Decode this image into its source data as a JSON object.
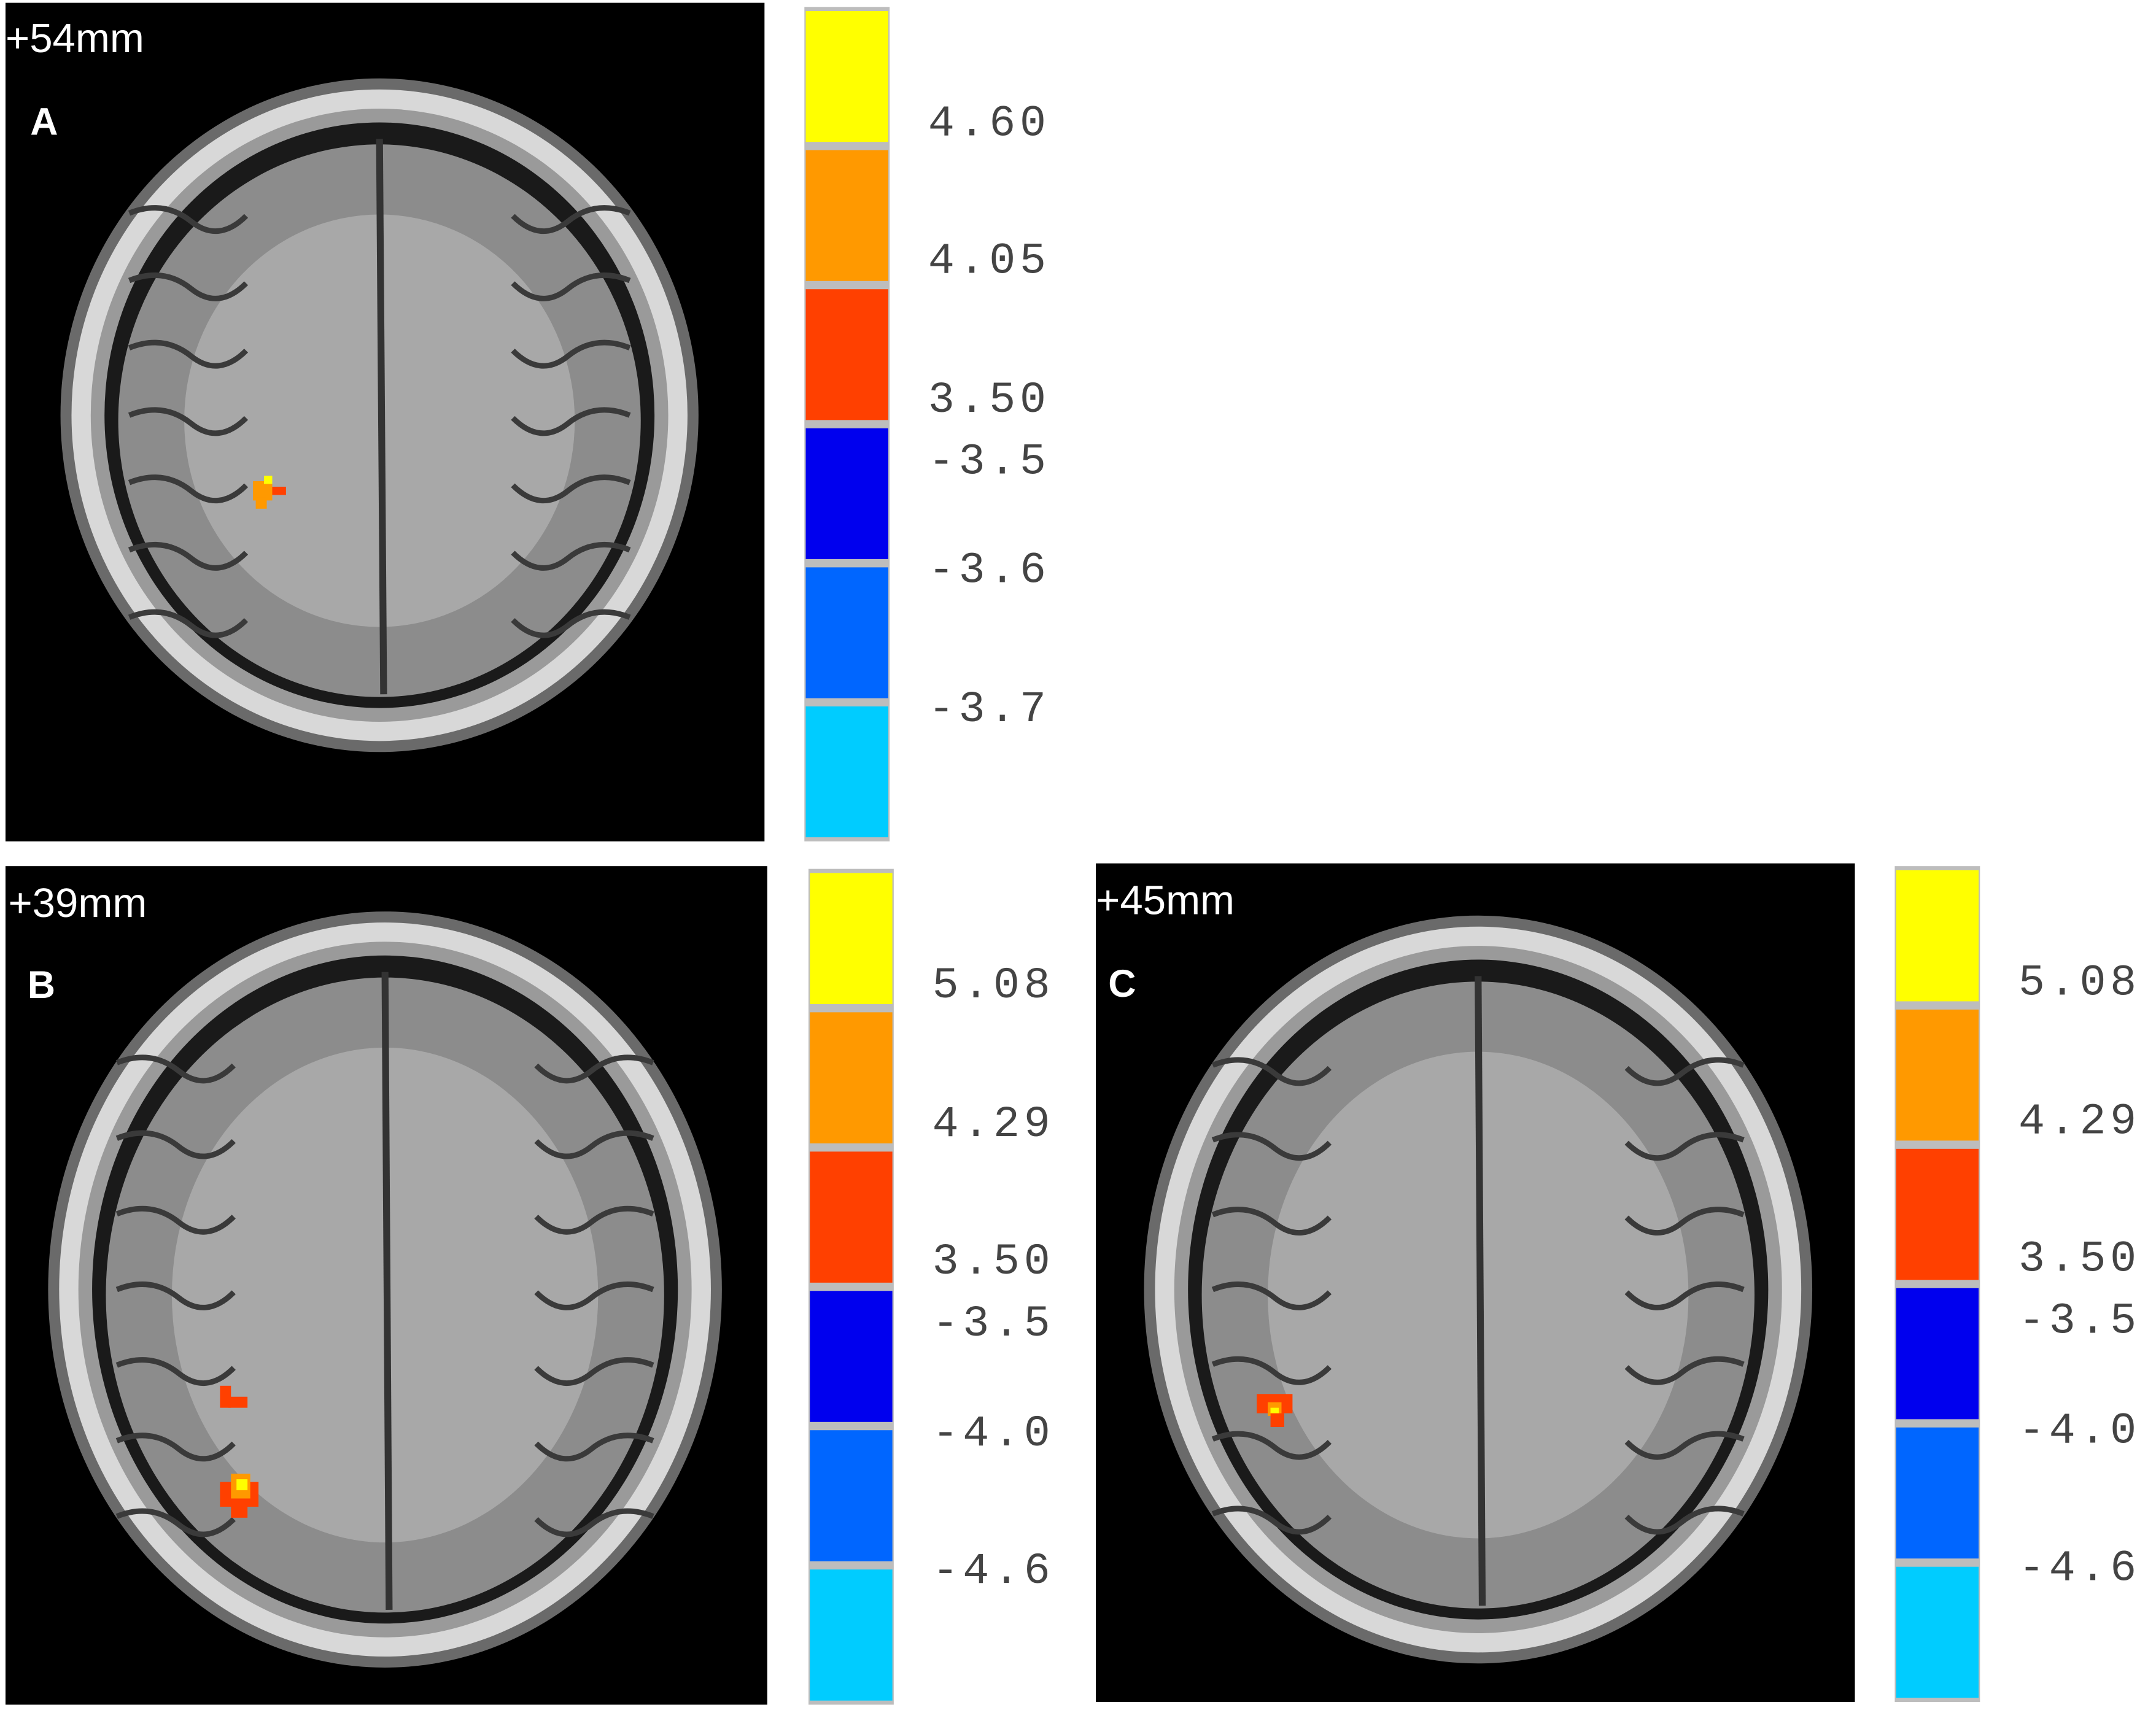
{
  "panels": [
    {
      "label": "A",
      "depth": "+54mm",
      "colorbar": {
        "colors": [
          "#ffff00",
          "#ff9900",
          "#ff4000",
          "#0000ee",
          "#0066ff",
          "#00ccff"
        ],
        "labels": [
          "4.60",
          "4.05",
          "3.50",
          "-3.5",
          "-3.6",
          "-3.7"
        ]
      }
    },
    {
      "label": "B",
      "depth": "+39mm",
      "colorbar": {
        "colors": [
          "#ffff00",
          "#ff9900",
          "#ff4000",
          "#0000ee",
          "#0066ff",
          "#00ccff"
        ],
        "labels": [
          "5.08",
          "4.29",
          "3.50",
          "-3.5",
          "-4.0",
          "-4.6"
        ]
      }
    },
    {
      "label": "C",
      "depth": "+45mm",
      "colorbar": {
        "colors": [
          "#ffff00",
          "#ff9900",
          "#ff4000",
          "#0000ee",
          "#0066ff",
          "#00ccff"
        ],
        "labels": [
          "5.08",
          "4.29",
          "3.50",
          "-3.5",
          "-4.0",
          "-4.6"
        ]
      }
    }
  ]
}
